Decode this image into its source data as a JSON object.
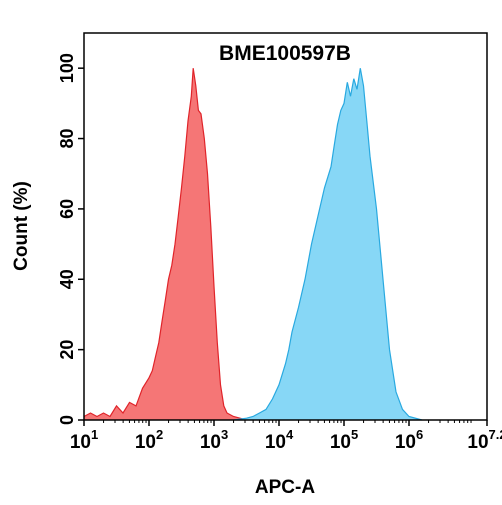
{
  "chart_data": {
    "type": "area",
    "title": "BME100597B",
    "xlabel": "APC-A",
    "ylabel": "Count  (%)",
    "x_scale": "log10",
    "xlim": [
      1,
      7.2
    ],
    "ylim": [
      0,
      110
    ],
    "y_ticks": [
      "0",
      "20",
      "40",
      "60",
      "80",
      "100"
    ],
    "y_tick_values": [
      0,
      20,
      40,
      60,
      80,
      100
    ],
    "x_ticks": [
      {
        "base": "10",
        "exp": "1",
        "value": 1
      },
      {
        "base": "10",
        "exp": "2",
        "value": 2
      },
      {
        "base": "10",
        "exp": "3",
        "value": 3
      },
      {
        "base": "10",
        "exp": "4",
        "value": 4
      },
      {
        "base": "10",
        "exp": "5",
        "value": 5
      },
      {
        "base": "10",
        "exp": "6",
        "value": 6
      },
      {
        "base": "10",
        "exp": "7.2",
        "value": 7.2
      }
    ],
    "grid": false,
    "legend": "none",
    "series": [
      {
        "color_fill": "#F46A6A",
        "color_line": "#E0242A",
        "points": [
          [
            1.0,
            1
          ],
          [
            1.1,
            2
          ],
          [
            1.2,
            1
          ],
          [
            1.3,
            2
          ],
          [
            1.4,
            1
          ],
          [
            1.5,
            4
          ],
          [
            1.6,
            2
          ],
          [
            1.7,
            5
          ],
          [
            1.8,
            4
          ],
          [
            1.9,
            9
          ],
          [
            2.0,
            12
          ],
          [
            2.05,
            14
          ],
          [
            2.1,
            18
          ],
          [
            2.15,
            22
          ],
          [
            2.2,
            28
          ],
          [
            2.25,
            34
          ],
          [
            2.3,
            40
          ],
          [
            2.35,
            44
          ],
          [
            2.4,
            50
          ],
          [
            2.45,
            58
          ],
          [
            2.5,
            66
          ],
          [
            2.55,
            75
          ],
          [
            2.6,
            85
          ],
          [
            2.65,
            92
          ],
          [
            2.68,
            100
          ],
          [
            2.72,
            95
          ],
          [
            2.76,
            88
          ],
          [
            2.8,
            87
          ],
          [
            2.85,
            80
          ],
          [
            2.9,
            70
          ],
          [
            2.95,
            55
          ],
          [
            3.0,
            38
          ],
          [
            3.05,
            22
          ],
          [
            3.1,
            10
          ],
          [
            3.15,
            4
          ],
          [
            3.2,
            2
          ],
          [
            3.3,
            1
          ],
          [
            3.4,
            0.5
          ],
          [
            3.5,
            0
          ]
        ]
      },
      {
        "color_fill": "#7DD4F5",
        "color_line": "#29A9E0",
        "points": [
          [
            3.3,
            0
          ],
          [
            3.5,
            0.5
          ],
          [
            3.6,
            1
          ],
          [
            3.7,
            2
          ],
          [
            3.8,
            3
          ],
          [
            3.9,
            6
          ],
          [
            4.0,
            10
          ],
          [
            4.1,
            16
          ],
          [
            4.15,
            20
          ],
          [
            4.2,
            25
          ],
          [
            4.3,
            32
          ],
          [
            4.4,
            40
          ],
          [
            4.5,
            50
          ],
          [
            4.6,
            58
          ],
          [
            4.7,
            66
          ],
          [
            4.8,
            72
          ],
          [
            4.85,
            78
          ],
          [
            4.9,
            84
          ],
          [
            4.95,
            88
          ],
          [
            5.0,
            90
          ],
          [
            5.05,
            96
          ],
          [
            5.1,
            92
          ],
          [
            5.15,
            97
          ],
          [
            5.2,
            94
          ],
          [
            5.25,
            100
          ],
          [
            5.3,
            95
          ],
          [
            5.35,
            85
          ],
          [
            5.4,
            75
          ],
          [
            5.5,
            60
          ],
          [
            5.6,
            40
          ],
          [
            5.7,
            20
          ],
          [
            5.8,
            8
          ],
          [
            5.9,
            3
          ],
          [
            6.0,
            1
          ],
          [
            6.2,
            0
          ]
        ]
      }
    ]
  }
}
